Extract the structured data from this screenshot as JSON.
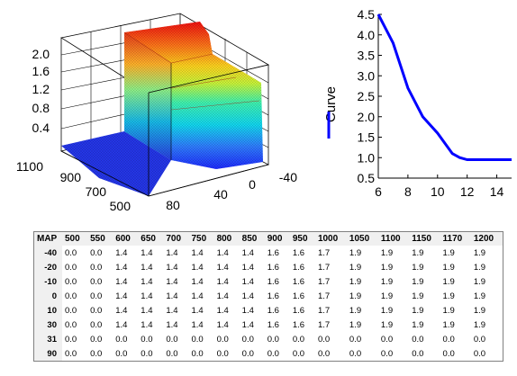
{
  "surface_plot": {
    "z_ticks": [
      "2.0",
      "1.6",
      "1.2",
      "0.8",
      "0.4"
    ],
    "x_ticks": [
      "1100",
      "900",
      "700",
      "500"
    ],
    "y_ticks": [
      "80",
      "40",
      "0",
      "-40"
    ]
  },
  "chart_data": {
    "type": "line",
    "ylabel": "Curve",
    "xlim": [
      6,
      15
    ],
    "ylim": [
      0.5,
      4.5
    ],
    "x_ticks": [
      6,
      8,
      10,
      12,
      14
    ],
    "y_ticks": [
      0.5,
      1.0,
      1.5,
      2.0,
      2.5,
      3.0,
      3.5,
      4.0,
      4.5
    ],
    "y_tick_labels": [
      "0.5",
      "1.0",
      "1.5",
      "2.0",
      "2.5",
      "3.0",
      "3.5",
      "4.0",
      "4.5"
    ],
    "series": [
      {
        "color": "#0000ff",
        "x": [
          6,
          7,
          8,
          9,
          10,
          11,
          11.5,
          12,
          13,
          14,
          15
        ],
        "y": [
          4.5,
          3.8,
          2.7,
          2.0,
          1.6,
          1.1,
          1.0,
          0.95,
          0.95,
          0.95,
          0.95
        ]
      }
    ]
  },
  "table": {
    "corner": "MAP",
    "columns": [
      "500",
      "550",
      "600",
      "650",
      "700",
      "750",
      "800",
      "850",
      "900",
      "950",
      "1000",
      "1050",
      "1100",
      "1150",
      "1170",
      "1200"
    ],
    "rows": [
      {
        "label": "-40",
        "values": [
          "0.0",
          "0.0",
          "1.4",
          "1.4",
          "1.4",
          "1.4",
          "1.4",
          "1.4",
          "1.6",
          "1.6",
          "1.7",
          "1.9",
          "1.9",
          "1.9",
          "1.9",
          "1.9"
        ]
      },
      {
        "label": "-20",
        "values": [
          "0.0",
          "0.0",
          "1.4",
          "1.4",
          "1.4",
          "1.4",
          "1.4",
          "1.4",
          "1.6",
          "1.6",
          "1.7",
          "1.9",
          "1.9",
          "1.9",
          "1.9",
          "1.9"
        ]
      },
      {
        "label": "-10",
        "values": [
          "0.0",
          "0.0",
          "1.4",
          "1.4",
          "1.4",
          "1.4",
          "1.4",
          "1.4",
          "1.6",
          "1.6",
          "1.7",
          "1.9",
          "1.9",
          "1.9",
          "1.9",
          "1.9"
        ]
      },
      {
        "label": "0",
        "values": [
          "0.0",
          "0.0",
          "1.4",
          "1.4",
          "1.4",
          "1.4",
          "1.4",
          "1.4",
          "1.6",
          "1.6",
          "1.7",
          "1.9",
          "1.9",
          "1.9",
          "1.9",
          "1.9"
        ]
      },
      {
        "label": "10",
        "values": [
          "0.0",
          "0.0",
          "1.4",
          "1.4",
          "1.4",
          "1.4",
          "1.4",
          "1.4",
          "1.6",
          "1.6",
          "1.7",
          "1.9",
          "1.9",
          "1.9",
          "1.9",
          "1.9"
        ]
      },
      {
        "label": "30",
        "values": [
          "0.0",
          "0.0",
          "1.4",
          "1.4",
          "1.4",
          "1.4",
          "1.4",
          "1.4",
          "1.6",
          "1.6",
          "1.7",
          "1.9",
          "1.9",
          "1.9",
          "1.9",
          "1.9"
        ]
      },
      {
        "label": "31",
        "values": [
          "0.0",
          "0.0",
          "0.0",
          "0.0",
          "0.0",
          "0.0",
          "0.0",
          "0.0",
          "0.0",
          "0.0",
          "0.0",
          "0.0",
          "0.0",
          "0.0",
          "0.0",
          "0.0"
        ]
      },
      {
        "label": "90",
        "values": [
          "0.0",
          "0.0",
          "0.0",
          "0.0",
          "0.0",
          "0.0",
          "0.0",
          "0.0",
          "0.0",
          "0.0",
          "0.0",
          "0.0",
          "0.0",
          "0.0",
          "0.0",
          "0.0"
        ]
      }
    ]
  }
}
